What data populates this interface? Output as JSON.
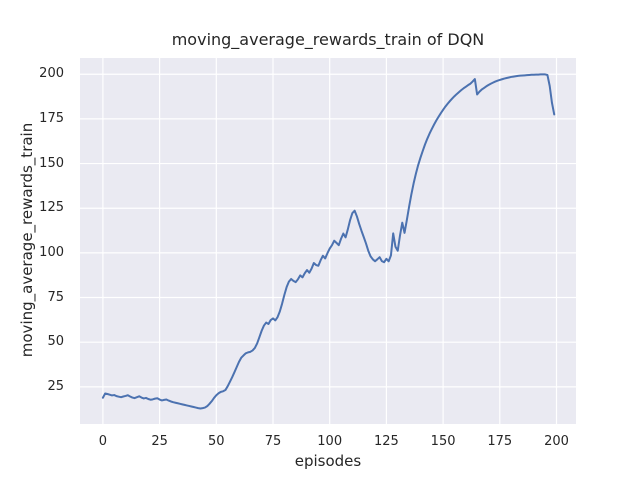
{
  "chart_data": {
    "type": "line",
    "title": "moving_average_rewards_train of DQN",
    "xlabel": "episodes",
    "ylabel": "moving_average_rewards_train",
    "x_ticks": [
      0,
      25,
      50,
      75,
      100,
      125,
      150,
      175,
      200
    ],
    "y_ticks": [
      25,
      50,
      75,
      100,
      125,
      150,
      175,
      200
    ],
    "xlim": [
      -10.1,
      208.6
    ],
    "ylim": [
      4.2,
      209.1
    ],
    "grid": true,
    "legend_position": "none",
    "style": {
      "line_color": "#4c72b0",
      "plot_background": "#eaeaf2",
      "grid_color": "#ffffff",
      "figure_background": "#ffffff",
      "text_color": "#262626"
    },
    "series": [
      {
        "name": "DQN",
        "x_start": 0,
        "x_step": 1,
        "values": [
          18.9,
          21.3,
          21.0,
          20.6,
          20.2,
          20.4,
          19.8,
          19.5,
          19.2,
          19.6,
          19.9,
          20.3,
          19.6,
          19.0,
          18.7,
          19.2,
          19.7,
          19.0,
          18.5,
          18.8,
          18.2,
          17.8,
          18.0,
          18.4,
          18.6,
          17.9,
          17.4,
          17.7,
          17.9,
          17.3,
          16.8,
          16.4,
          16.1,
          15.8,
          15.5,
          15.2,
          14.9,
          14.6,
          14.3,
          14.0,
          13.7,
          13.4,
          13.1,
          12.9,
          13.1,
          13.4,
          14.2,
          15.5,
          17.0,
          18.8,
          20.3,
          21.4,
          22.2,
          22.5,
          23.2,
          25.3,
          27.8,
          30.4,
          33.2,
          36.1,
          39.0,
          41.3,
          42.6,
          43.8,
          44.3,
          44.6,
          45.4,
          46.8,
          49.3,
          52.8,
          56.4,
          59.3,
          61.0,
          60.2,
          62.4,
          63.3,
          62.2,
          64.0,
          67.2,
          71.5,
          76.4,
          80.8,
          83.9,
          85.4,
          84.3,
          83.6,
          85.2,
          87.4,
          86.3,
          88.6,
          90.4,
          88.9,
          91.2,
          94.3,
          93.2,
          92.8,
          95.9,
          98.4,
          96.9,
          99.8,
          102.4,
          104.3,
          106.8,
          105.6,
          104.3,
          107.9,
          110.8,
          108.7,
          113.2,
          118.4,
          122.3,
          123.6,
          120.4,
          116.2,
          112.4,
          108.9,
          105.3,
          101.2,
          98.1,
          96.4,
          95.3,
          96.4,
          97.6,
          95.4,
          94.8,
          96.7,
          95.3,
          98.6,
          110.9,
          103.4,
          101.2,
          109.8,
          116.9,
          111.2,
          118.3,
          125.8,
          132.7,
          138.9,
          144.3,
          149.1,
          153.2,
          157.0,
          160.6,
          163.8,
          166.7,
          169.3,
          171.8,
          174.1,
          176.2,
          178.2,
          180.1,
          181.9,
          183.5,
          185.0,
          186.4,
          187.7,
          188.9,
          190.0,
          191.1,
          192.1,
          193.0,
          193.9,
          194.7,
          195.9,
          197.3,
          188.7,
          190.2,
          191.4,
          192.3,
          193.2,
          194.0,
          194.7,
          195.3,
          195.9,
          196.4,
          196.8,
          197.2,
          197.6,
          197.9,
          198.2,
          198.5,
          198.7,
          198.9,
          199.1,
          199.2,
          199.3,
          199.4,
          199.5,
          199.6,
          199.7,
          199.7,
          199.8,
          199.8,
          199.9,
          199.9,
          199.9,
          199.6,
          193.5,
          184.0,
          177.5
        ]
      }
    ]
  }
}
